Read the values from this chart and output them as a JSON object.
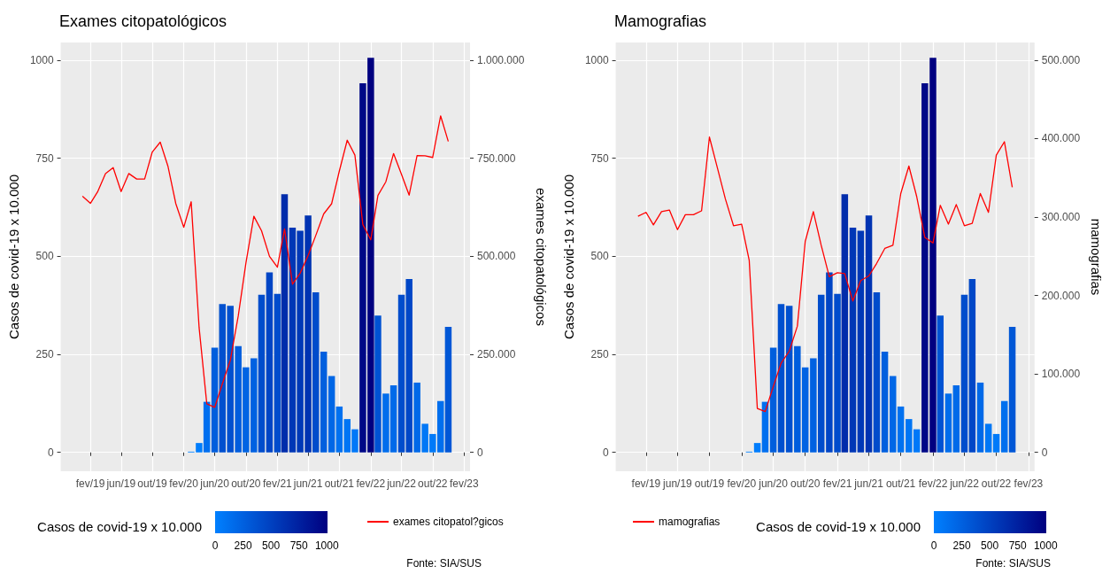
{
  "chart_data": [
    {
      "type": "bar",
      "title": "Exames citopatológicos",
      "ylabel": "Casos de covid-19 x 10.000",
      "y2label": "exames citopatológicos",
      "clabel": "Casos de covid-19 x 10.000",
      "clim": [
        0,
        1006
      ],
      "cticks": [
        0,
        250,
        500,
        750,
        1000
      ],
      "xlim": [
        "2018-10-08",
        "2023-02-24"
      ],
      "xticks": [
        {
          "value": "2019-02",
          "label": "fev/19"
        },
        {
          "value": "2019-06",
          "label": "jun/19"
        },
        {
          "value": "2019-10",
          "label": "out/19"
        },
        {
          "value": "2020-02",
          "label": "fev/20"
        },
        {
          "value": "2020-06",
          "label": "jun/20"
        },
        {
          "value": "2020-10",
          "label": "out/20"
        },
        {
          "value": "2021-02",
          "label": "fev/21"
        },
        {
          "value": "2021-06",
          "label": "jun/21"
        },
        {
          "value": "2021-10",
          "label": "out/21"
        },
        {
          "value": "2022-02",
          "label": "fev/22"
        },
        {
          "value": "2022-06",
          "label": "jun/22"
        },
        {
          "value": "2022-10",
          "label": "out/22"
        },
        {
          "value": "2023-02",
          "label": "fev/23"
        }
      ],
      "ylim": [
        -48,
        1045
      ],
      "yticks": [
        0,
        250,
        500,
        750,
        1000
      ],
      "y2lim": [
        -48000,
        1045000
      ],
      "y2ticks": [
        0,
        {
          "value": 250000,
          "label": "250.000"
        },
        {
          "value": 500000,
          "label": "500.000"
        },
        {
          "value": 750000,
          "label": "750.000"
        },
        {
          "value": 1000000,
          "label": "1.000.000"
        }
      ],
      "grid": true,
      "legend": "bottom right",
      "annotations": [
        "Fonte: SIA/SUS"
      ],
      "series": [
        {
          "x": [
            "2020-03",
            "2020-04",
            "2020-05",
            "2020-06",
            "2020-07",
            "2020-08",
            "2020-09",
            "2020-10",
            "2020-11",
            "2020-12",
            "2021-01",
            "2021-02",
            "2021-03",
            "2021-04",
            "2021-05",
            "2021-06",
            "2021-07",
            "2021-08",
            "2021-09",
            "2021-10",
            "2021-11",
            "2021-12",
            "2022-01",
            "2022-02",
            "2022-03",
            "2022-04",
            "2022-05",
            "2022-06",
            "2022-07",
            "2022-08",
            "2022-09",
            "2022-10",
            "2022-11",
            "2022-12"
          ],
          "values": [
            2,
            24,
            129,
            267,
            378,
            374,
            271,
            217,
            240,
            402,
            459,
            404,
            658,
            573,
            565,
            604,
            408,
            257,
            195,
            117,
            85,
            59,
            941,
            1006,
            349,
            150,
            171,
            402,
            442,
            178,
            73,
            47,
            131,
            320
          ],
          "colors": [
            "#0080ff",
            "#007dfc",
            "#006fef",
            "#005edd",
            "#0050cf",
            "#0050cf",
            "#005ddd",
            "#0064e3",
            "#0061e1",
            "#004dcc",
            "#0045c5",
            "#004ccc",
            "#002cab",
            "#0037b6",
            "#0038b7",
            "#0033b2",
            "#004ccb",
            "#005fde",
            "#0067e6",
            "#0071f0",
            "#0075f4",
            "#0078f8",
            "#000887",
            "#000080",
            "#0053d3",
            "#006dec",
            "#006ae9",
            "#004dcc",
            "#0047c7",
            "#0069e8",
            "#0077f6",
            "#007af9",
            "#006fee",
            "#0057d6"
          ]
        },
        {
          "type": "line",
          "axis": "y2",
          "name": "exames citopatol?gicos",
          "color": "#ff0000",
          "x": [
            "2019-01",
            "2019-02",
            "2019-03",
            "2019-04",
            "2019-05",
            "2019-06",
            "2019-07",
            "2019-08",
            "2019-09",
            "2019-10",
            "2019-11",
            "2019-12",
            "2020-01",
            "2020-02",
            "2020-03",
            "2020-04",
            "2020-05",
            "2020-06",
            "2020-07",
            "2020-08",
            "2020-09",
            "2020-10",
            "2020-11",
            "2020-12",
            "2021-01",
            "2021-02",
            "2021-03",
            "2021-04",
            "2021-05",
            "2021-06",
            "2021-07",
            "2021-08",
            "2021-09",
            "2021-10",
            "2021-11",
            "2021-12",
            "2022-01",
            "2022-02",
            "2022-03",
            "2022-04",
            "2022-05",
            "2022-06",
            "2022-07",
            "2022-08",
            "2022-09",
            "2022-10",
            "2022-11",
            "2022-12"
          ],
          "values": [
            653000,
            635000,
            664000,
            711000,
            726000,
            665000,
            711000,
            697000,
            697000,
            766000,
            791000,
            730000,
            634000,
            574000,
            639000,
            318000,
            124000,
            115000,
            175000,
            235000,
            348000,
            483000,
            602000,
            565000,
            500000,
            472000,
            570000,
            429000,
            457000,
            502000,
            553000,
            608000,
            634000,
            717000,
            796000,
            758000,
            581000,
            542000,
            655000,
            690000,
            762000,
            709000,
            656000,
            757000,
            756000,
            752000,
            858000,
            793000
          ]
        }
      ]
    },
    {
      "type": "bar",
      "title": "Mamografias",
      "ylabel": "Casos de covid-19 x 10.000",
      "y2label": "mamografias",
      "clabel": "Casos de covid-19 x 10.000",
      "clim": [
        0,
        1006
      ],
      "cticks": [
        0,
        250,
        500,
        750,
        1000
      ],
      "xlim": [
        "2018-10-08",
        "2023-02-24"
      ],
      "xticks": [
        {
          "value": "2019-02",
          "label": "fev/19"
        },
        {
          "value": "2019-06",
          "label": "jun/19"
        },
        {
          "value": "2019-10",
          "label": "out/19"
        },
        {
          "value": "2020-02",
          "label": "fev/20"
        },
        {
          "value": "2020-06",
          "label": "jun/20"
        },
        {
          "value": "2020-10",
          "label": "out/20"
        },
        {
          "value": "2021-02",
          "label": "fev/21"
        },
        {
          "value": "2021-06",
          "label": "jun/21"
        },
        {
          "value": "2021-10",
          "label": "out/21"
        },
        {
          "value": "2022-02",
          "label": "fev/22"
        },
        {
          "value": "2022-06",
          "label": "jun/22"
        },
        {
          "value": "2022-10",
          "label": "out/22"
        },
        {
          "value": "2023-02",
          "label": "fev/23"
        }
      ],
      "ylim": [
        -48,
        1045
      ],
      "yticks": [
        0,
        250,
        500,
        750,
        1000
      ],
      "y2lim": [
        -24000,
        522500
      ],
      "y2ticks": [
        0,
        {
          "value": 100000,
          "label": "100.000"
        },
        {
          "value": 200000,
          "label": "200.000"
        },
        {
          "value": 300000,
          "label": "300.000"
        },
        {
          "value": 400000,
          "label": "400.000"
        },
        {
          "value": 500000,
          "label": "500.000"
        }
      ],
      "grid": true,
      "legend": "bottom left",
      "annotations": [
        "Fonte: SIA/SUS"
      ],
      "series": [
        {
          "x": [
            "2020-03",
            "2020-04",
            "2020-05",
            "2020-06",
            "2020-07",
            "2020-08",
            "2020-09",
            "2020-10",
            "2020-11",
            "2020-12",
            "2021-01",
            "2021-02",
            "2021-03",
            "2021-04",
            "2021-05",
            "2021-06",
            "2021-07",
            "2021-08",
            "2021-09",
            "2021-10",
            "2021-11",
            "2021-12",
            "2022-01",
            "2022-02",
            "2022-03",
            "2022-04",
            "2022-05",
            "2022-06",
            "2022-07",
            "2022-08",
            "2022-09",
            "2022-10",
            "2022-11",
            "2022-12"
          ],
          "values": [
            2,
            24,
            129,
            267,
            378,
            374,
            271,
            217,
            240,
            402,
            459,
            404,
            658,
            573,
            565,
            604,
            408,
            257,
            195,
            117,
            85,
            59,
            941,
            1006,
            349,
            150,
            171,
            402,
            442,
            178,
            73,
            47,
            131,
            320
          ],
          "colors": [
            "#0080ff",
            "#007dfc",
            "#006fef",
            "#005edd",
            "#0050cf",
            "#0050cf",
            "#005ddd",
            "#0064e3",
            "#0061e1",
            "#004dcc",
            "#0045c5",
            "#004ccc",
            "#002cab",
            "#0037b6",
            "#0038b7",
            "#0033b2",
            "#004ccb",
            "#005fde",
            "#0067e6",
            "#0071f0",
            "#0075f4",
            "#0078f8",
            "#000887",
            "#000080",
            "#0053d3",
            "#006dec",
            "#006ae9",
            "#004dcc",
            "#0047c7",
            "#0069e8",
            "#0077f6",
            "#007af9",
            "#006fee",
            "#0057d6"
          ]
        },
        {
          "type": "line",
          "axis": "y2",
          "name": "mamografias",
          "color": "#ff0000",
          "x": [
            "2019-01",
            "2019-02",
            "2019-03",
            "2019-04",
            "2019-05",
            "2019-06",
            "2019-07",
            "2019-08",
            "2019-09",
            "2019-10",
            "2019-11",
            "2019-12",
            "2020-01",
            "2020-02",
            "2020-03",
            "2020-04",
            "2020-05",
            "2020-06",
            "2020-07",
            "2020-08",
            "2020-09",
            "2020-10",
            "2020-11",
            "2020-12",
            "2021-01",
            "2021-02",
            "2021-03",
            "2021-04",
            "2021-05",
            "2021-06",
            "2021-07",
            "2021-08",
            "2021-09",
            "2021-10",
            "2021-11",
            "2021-12",
            "2022-01",
            "2022-02",
            "2022-03",
            "2022-04",
            "2022-05",
            "2022-06",
            "2022-07",
            "2022-08",
            "2022-09",
            "2022-10",
            "2022-11",
            "2022-12"
          ],
          "values": [
            301000,
            306000,
            290000,
            307000,
            309000,
            284000,
            303000,
            303000,
            308000,
            402000,
            362000,
            323000,
            289000,
            291000,
            245000,
            56000,
            52000,
            84000,
            114000,
            129000,
            161000,
            269000,
            307000,
            264000,
            224000,
            229000,
            228000,
            193000,
            219000,
            225000,
            241000,
            260000,
            264000,
            330000,
            365000,
            326000,
            274000,
            267000,
            315000,
            291000,
            316000,
            289000,
            292000,
            330000,
            306000,
            379000,
            396000,
            338000
          ]
        }
      ]
    }
  ]
}
